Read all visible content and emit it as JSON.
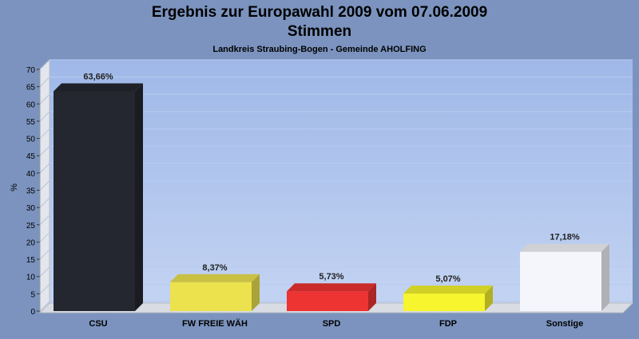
{
  "chart_data": {
    "type": "bar",
    "title": "Ergebnis zur Europawahl 2009 vom 07.06.2009",
    "subtitle": "Stimmen",
    "caption": "Landkreis Straubing-Bogen - Gemeinde AHOLFING",
    "ylabel": "%",
    "ylim": [
      0,
      70
    ],
    "yticks": [
      0,
      5,
      10,
      15,
      20,
      25,
      30,
      35,
      40,
      45,
      50,
      55,
      60,
      65,
      70
    ],
    "categories": [
      "CSU",
      "FW FREIE WÄH",
      "SPD",
      "FDP",
      "Sonstige"
    ],
    "values": [
      63.66,
      8.37,
      5.73,
      5.07,
      17.18
    ],
    "value_labels": [
      "63,66%",
      "8,37%",
      "5,73%",
      "5,07%",
      "17,18%"
    ],
    "colors": [
      "#24272f",
      "#ece24e",
      "#ee3333",
      "#f6f52e",
      "#f4f6fb"
    ],
    "grid": true,
    "legend": "none"
  }
}
